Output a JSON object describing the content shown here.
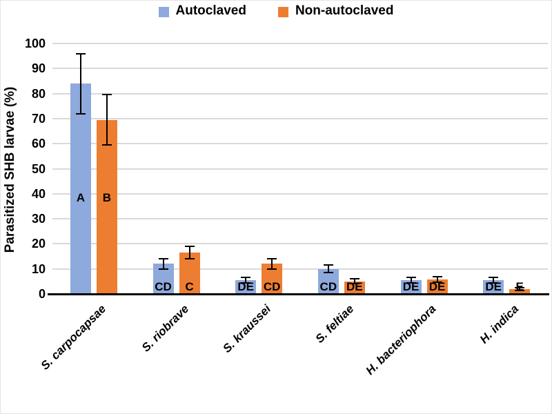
{
  "chart_data": {
    "type": "bar",
    "title": "",
    "xlabel": "",
    "ylabel": "Parasitized SHB larvae (%)",
    "ylim": [
      0,
      100
    ],
    "yticks": [
      0,
      10,
      20,
      30,
      40,
      50,
      60,
      70,
      80,
      90,
      100
    ],
    "grid": true,
    "legend_position": "top-center",
    "categories": [
      "S. carpocapsae",
      "S. riobrave",
      "S. kraussei",
      "S. feltiae",
      "H. bacteriophora",
      "H. indica"
    ],
    "series": [
      {
        "name": "Autoclaved",
        "color": "#8EA9DB",
        "values": [
          84,
          12,
          5.5,
          10,
          5.5,
          5.5
        ],
        "errors": [
          12,
          2,
          1.2,
          1.5,
          1,
          1
        ],
        "letters": [
          "A",
          "CD",
          "DE",
          "CD",
          "DE",
          "DE"
        ]
      },
      {
        "name": "Non-autoclaved",
        "color": "#ED7D31",
        "values": [
          69.5,
          16.5,
          12,
          5,
          5.8,
          2
        ],
        "errors": [
          10,
          2.5,
          2,
          1,
          1,
          0.5
        ],
        "letters": [
          "B",
          "C",
          "CD",
          "DE",
          "DE",
          "E"
        ]
      }
    ],
    "colors": {
      "gridline": "#D9D9D9",
      "axis": "#000000",
      "error_bar": "#000000",
      "text": "#000000"
    }
  }
}
